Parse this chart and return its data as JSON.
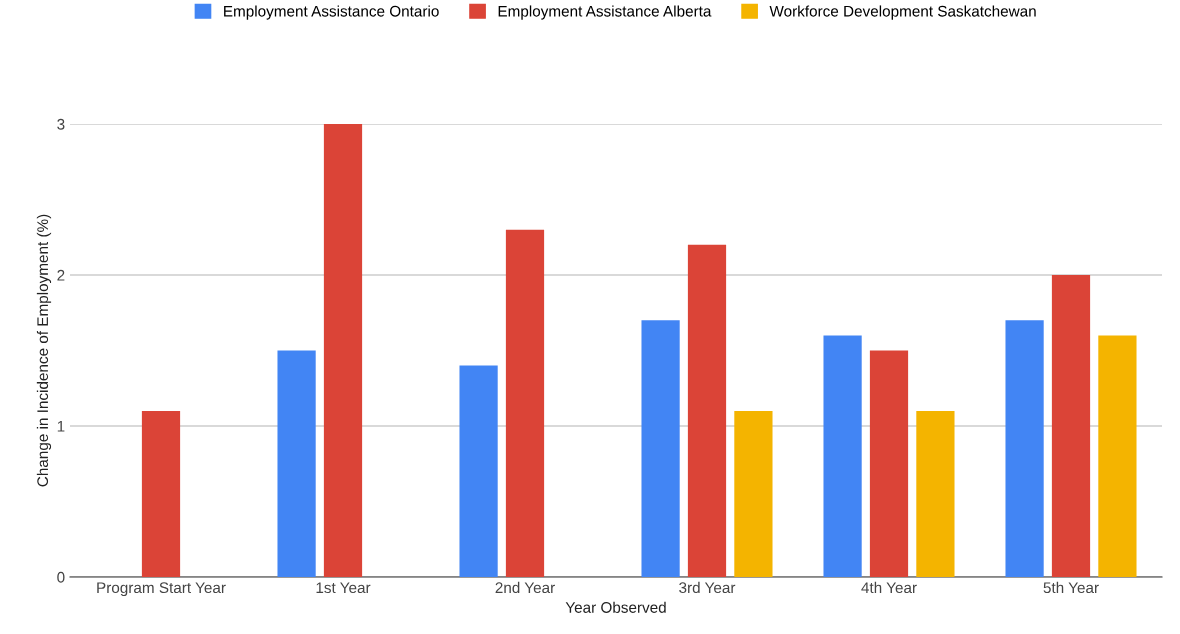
{
  "chart_data": {
    "type": "bar",
    "xlabel": "Year Observed",
    "ylabel": "Change in Incidence of Employment (%)",
    "categories": [
      "Program Start Year",
      "1st Year",
      "2nd Year",
      "3rd Year",
      "4th Year",
      "5th Year"
    ],
    "series": [
      {
        "name": "Employment Assistance Ontario",
        "color": "#4285f4",
        "values": [
          null,
          1.5,
          1.4,
          1.7,
          1.6,
          1.7
        ]
      },
      {
        "name": "Employment Assistance Alberta",
        "color": "#db4437",
        "values": [
          1.1,
          3.0,
          2.3,
          2.2,
          1.5,
          2.0
        ]
      },
      {
        "name": "Workforce Development Saskatchewan",
        "color": "#f4b400",
        "values": [
          null,
          null,
          null,
          1.1,
          1.1,
          1.6
        ]
      }
    ],
    "ylim": [
      0,
      3
    ],
    "yticks": [
      0,
      1,
      2,
      3
    ],
    "grid": "y",
    "legend": "top"
  }
}
